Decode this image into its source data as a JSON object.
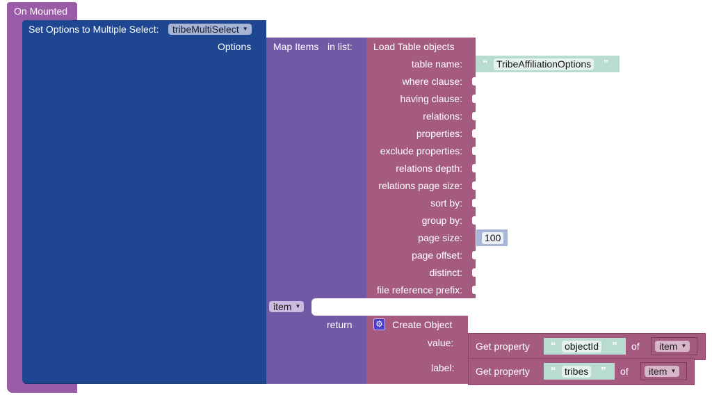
{
  "event_block": {
    "label": "On Mounted",
    "color": "#9a5ca6"
  },
  "set_options_block": {
    "label": "Set Options to Multiple Select:",
    "component": "tribeMultiSelect",
    "options_label": "Options",
    "color": "#1f4690"
  },
  "map_items_block": {
    "label": "Map Items",
    "in_list_label": "in list:",
    "item_var": "item",
    "return_label": "return",
    "color": "#7259a6"
  },
  "load_table_block": {
    "label": "Load Table objects",
    "color": "#a55b80",
    "params": [
      {
        "label": "table name:",
        "value": "TribeAffiliationOptions",
        "type": "string"
      },
      {
        "label": "where clause:"
      },
      {
        "label": "having clause:"
      },
      {
        "label": "relations:"
      },
      {
        "label": "properties:"
      },
      {
        "label": "exclude properties:"
      },
      {
        "label": "relations depth:"
      },
      {
        "label": "relations page size:"
      },
      {
        "label": "sort by:"
      },
      {
        "label": "group by:"
      },
      {
        "label": "page size:",
        "value": "100",
        "type": "number"
      },
      {
        "label": "page offset:"
      },
      {
        "label": "distinct:"
      },
      {
        "label": "file reference prefix:"
      }
    ]
  },
  "create_object_block": {
    "label": "Create Object",
    "icon": "gear-icon",
    "fields": [
      {
        "label": "value:",
        "getprop_label": "Get property",
        "property": "objectId",
        "of_label": "of",
        "item": "item"
      },
      {
        "label": "label:",
        "getprop_label": "Get property",
        "property": "tribes",
        "of_label": "of",
        "item": "item"
      }
    ]
  },
  "quote_open": "“",
  "quote_close": "”",
  "dropdown_arrow": "▼"
}
